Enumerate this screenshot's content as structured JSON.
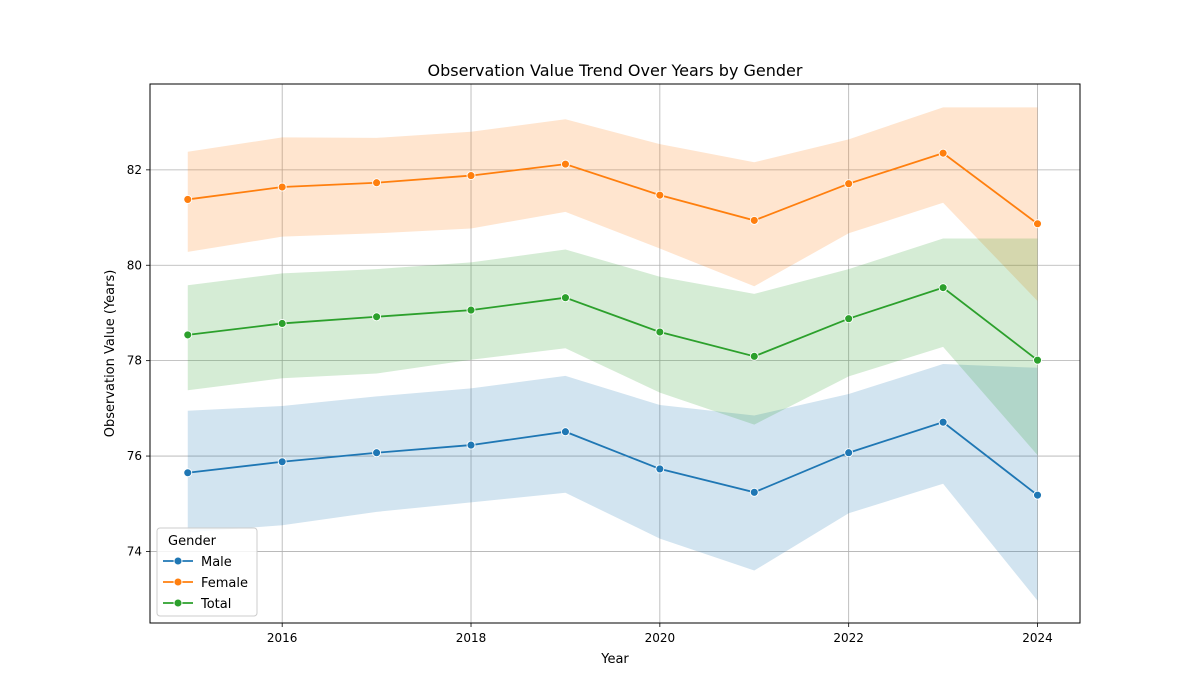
{
  "chart_data": {
    "type": "line",
    "title": "Observation Value Trend Over Years by Gender",
    "xlabel": "Year",
    "ylabel": "Observation Value (Years)",
    "x": [
      2015,
      2016,
      2017,
      2018,
      2019,
      2020,
      2021,
      2022,
      2023,
      2024
    ],
    "xlim": [
      2014.6,
      2024.45
    ],
    "ylim": [
      72.5,
      83.8
    ],
    "xticks": [
      2016,
      2018,
      2020,
      2022,
      2024
    ],
    "yticks": [
      74,
      76,
      78,
      80,
      82
    ],
    "grid": true,
    "legend": {
      "title": "Gender",
      "position": "bottom-left"
    },
    "series": [
      {
        "name": "Male",
        "color": "#1f77b4",
        "values": [
          75.65,
          75.88,
          76.07,
          76.23,
          76.51,
          75.73,
          75.24,
          76.07,
          76.71,
          75.18
        ],
        "lower": [
          74.4,
          74.55,
          74.83,
          75.03,
          75.23,
          74.27,
          73.6,
          74.8,
          75.42,
          72.97
        ],
        "upper": [
          76.95,
          77.05,
          77.25,
          77.42,
          77.68,
          77.07,
          76.85,
          77.3,
          77.93,
          77.85
        ]
      },
      {
        "name": "Female",
        "color": "#ff7f0e",
        "values": [
          81.38,
          81.64,
          81.73,
          81.88,
          82.12,
          81.47,
          80.94,
          81.71,
          82.35,
          80.87
        ],
        "lower": [
          80.28,
          80.6,
          80.67,
          80.77,
          81.12,
          80.35,
          79.56,
          80.67,
          81.31,
          79.25
        ],
        "upper": [
          82.38,
          82.68,
          82.67,
          82.8,
          83.06,
          82.54,
          82.16,
          82.64,
          83.31,
          83.31
        ]
      },
      {
        "name": "Total",
        "color": "#2ca02c",
        "values": [
          78.54,
          78.78,
          78.92,
          79.06,
          79.32,
          78.6,
          78.09,
          78.88,
          79.53,
          78.01
        ],
        "lower": [
          77.38,
          77.63,
          77.73,
          78.02,
          78.26,
          77.33,
          76.66,
          77.67,
          78.29,
          76.02
        ],
        "upper": [
          79.58,
          79.83,
          79.92,
          80.06,
          80.33,
          79.76,
          79.4,
          79.92,
          80.56,
          80.56
        ]
      }
    ]
  }
}
